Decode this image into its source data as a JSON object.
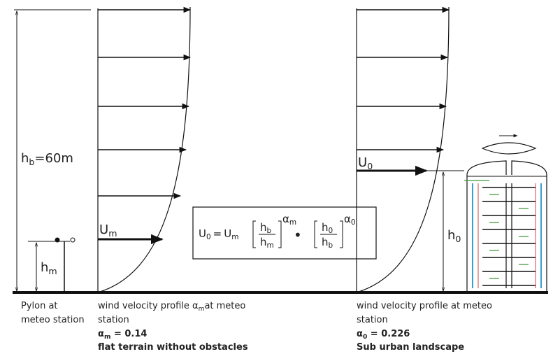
{
  "labels": {
    "hb": {
      "base": "h",
      "sub": "b",
      "tail": "=60m"
    },
    "hm": {
      "base": "h",
      "sub": "m"
    },
    "um": {
      "base": "U",
      "sub": "m"
    },
    "u0": {
      "base": "U",
      "sub": "0"
    },
    "h0": {
      "base": "h",
      "sub": "0"
    }
  },
  "formula": {
    "lhs": {
      "base": "U",
      "sub": "0"
    },
    "eq": "=",
    "um": {
      "base": "U",
      "sub": "m"
    },
    "f1_num": {
      "base": "h",
      "sub": "b"
    },
    "f1_den": {
      "base": "h",
      "sub": "m"
    },
    "f1_exp": {
      "base": "α",
      "sub": "m"
    },
    "dot": "•",
    "f2_num": {
      "base": "h",
      "sub": "0"
    },
    "f2_den": {
      "base": "h",
      "sub": "b"
    },
    "f2_exp": {
      "base": "α",
      "sub": "0"
    }
  },
  "captions": {
    "pylon": [
      "Pylon at",
      "meteo station"
    ],
    "left": {
      "line1": {
        "pre": "wind velocity profile α",
        "sub": "m",
        "post": "at meteo"
      },
      "line2": "station",
      "alpha": {
        "base": "α",
        "sub": "m",
        "tail": " = 0.14"
      },
      "terrain": "flat terrain without obstacles"
    },
    "right": {
      "line1": "wind velocity profile at meteo",
      "line2": "station",
      "alpha": {
        "base": "α",
        "sub": "0",
        "tail": " = 0.226"
      },
      "terrain": "Sub urban landscape"
    }
  }
}
